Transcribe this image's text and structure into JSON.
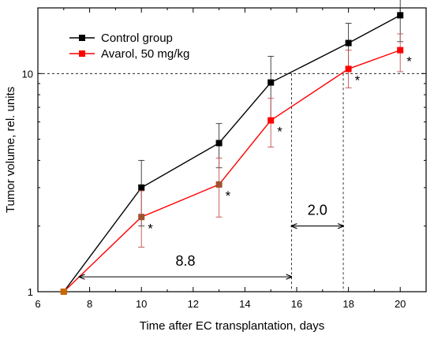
{
  "chart_data": {
    "type": "line",
    "xlabel": "Time after EC transplantation, days",
    "ylabel": "Tumor volume, rel. units",
    "xlim": [
      6,
      21
    ],
    "ylim": [
      1,
      20
    ],
    "yscale": "log",
    "x_ticks": [
      6,
      8,
      10,
      12,
      14,
      16,
      18,
      20
    ],
    "y_ticks": [
      1,
      10
    ],
    "grid": false,
    "legend_position": "top-left",
    "series": [
      {
        "name": "Control group",
        "color": "#000000",
        "x": [
          7,
          10,
          13,
          15,
          18,
          20
        ],
        "y": [
          1.0,
          3.0,
          4.8,
          9.1,
          13.8,
          18.5
        ],
        "err_upper": [
          1.0,
          4.0,
          5.9,
          12.0,
          17.0,
          22.5
        ],
        "err_lower": [
          1.0,
          2.0,
          3.7,
          6.2,
          10.6,
          14.0
        ]
      },
      {
        "name": "Avarol, 50 mg/kg",
        "color": "#ff0000",
        "x": [
          7,
          10,
          13,
          15,
          18,
          20
        ],
        "y": [
          1.0,
          2.2,
          3.1,
          6.1,
          10.5,
          12.8
        ],
        "err_upper": [
          1.0,
          2.9,
          4.1,
          7.7,
          12.8,
          15.2
        ],
        "err_lower": [
          1.0,
          1.6,
          2.2,
          4.6,
          8.6,
          10.2
        ]
      }
    ],
    "significance_marks": [
      {
        "x": 10,
        "y": 2.2,
        "label": "*"
      },
      {
        "x": 13,
        "y": 3.1,
        "label": "*"
      },
      {
        "x": 15,
        "y": 6.1,
        "label": "*"
      },
      {
        "x": 18,
        "y": 10.5,
        "label": "*"
      },
      {
        "x": 20,
        "y": 12.8,
        "label": "*"
      }
    ],
    "reference_level": 10,
    "reference_x": [
      15.8,
      17.8
    ],
    "annotations": [
      {
        "label": "8.8",
        "x_from": 7.6,
        "x_to": 15.8,
        "y": 1.17
      },
      {
        "label": "2.0",
        "x_from": 15.8,
        "x_to": 17.8,
        "y": 2.0
      }
    ]
  }
}
